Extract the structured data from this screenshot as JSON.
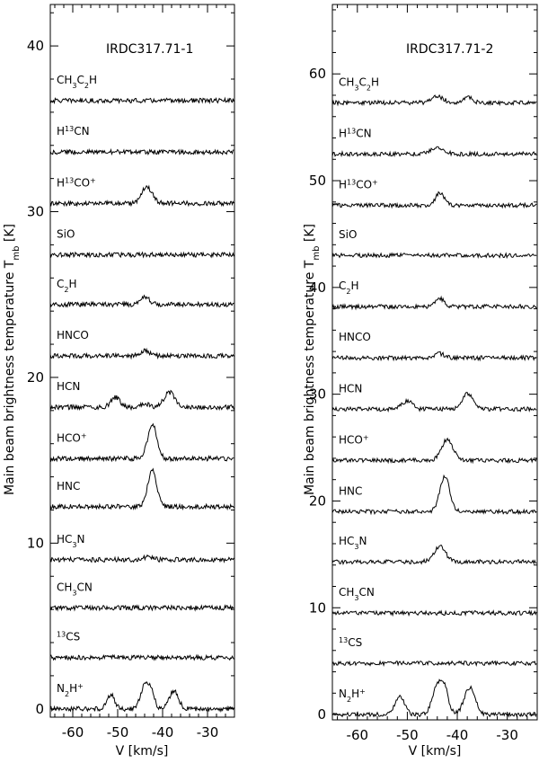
{
  "chart_data": [
    {
      "type": "line",
      "title": "IRDC317.71-1",
      "xlabel": "V [km/s]",
      "ylabel": "Main beam brightness temperature T_mb [K]",
      "xlim": [
        -65,
        -24
      ],
      "ylim": [
        -0.5,
        42.5
      ],
      "xticks": [
        -60,
        -50,
        -40,
        -30
      ],
      "yticks": [
        0,
        10,
        20,
        30,
        40
      ],
      "series": [
        {
          "name": "CH3C2H",
          "label": {
            "base": "CH",
            "parts": [
              {
                "t": "3",
                "s": "sub"
              },
              {
                "t": "C",
                "s": ""
              },
              {
                "t": "2",
                "s": "sub"
              },
              {
                "t": "H",
                "s": ""
              }
            ]
          },
          "offset": 36.7,
          "lines": []
        },
        {
          "name": "H13CN",
          "label": {
            "base": "H",
            "parts": [
              {
                "t": "13",
                "s": "sup"
              },
              {
                "t": "CN",
                "s": ""
              }
            ]
          },
          "offset": 33.6,
          "lines": []
        },
        {
          "name": "H13CO+",
          "label": {
            "base": "H",
            "parts": [
              {
                "t": "13",
                "s": "sup"
              },
              {
                "t": "CO",
                "s": ""
              },
              {
                "t": "+",
                "s": "sup"
              }
            ]
          },
          "offset": 30.5,
          "lines": [
            {
              "v": -43.5,
              "a": 1.0,
              "w": 1.2
            }
          ]
        },
        {
          "name": "SiO",
          "label": {
            "base": "SiO",
            "parts": []
          },
          "offset": 27.4,
          "lines": []
        },
        {
          "name": "C2H",
          "label": {
            "base": "C",
            "parts": [
              {
                "t": "2",
                "s": "sub"
              },
              {
                "t": "H",
                "s": ""
              }
            ]
          },
          "offset": 24.4,
          "lines": [
            {
              "v": -44.0,
              "a": 0.5,
              "w": 1.0
            }
          ]
        },
        {
          "name": "HNCO",
          "label": {
            "base": "HNCO",
            "parts": []
          },
          "offset": 21.3,
          "lines": [
            {
              "v": -44.0,
              "a": 0.3,
              "w": 1.0
            }
          ]
        },
        {
          "name": "HCN",
          "label": {
            "base": "HCN",
            "parts": []
          },
          "offset": 18.2,
          "lines": [
            {
              "v": -50.5,
              "a": 0.6,
              "w": 1.0
            },
            {
              "v": -38.5,
              "a": 0.9,
              "w": 1.2
            },
            {
              "v": -44.0,
              "a": 0.2,
              "w": 1.0
            }
          ]
        },
        {
          "name": "HCO+",
          "label": {
            "base": "HCO",
            "parts": [
              {
                "t": "+",
                "s": "sup"
              }
            ]
          },
          "offset": 15.1,
          "lines": [
            {
              "v": -42.3,
              "a": 2.1,
              "w": 1.0
            }
          ]
        },
        {
          "name": "HNC",
          "label": {
            "base": "HNC",
            "parts": []
          },
          "offset": 12.2,
          "lines": [
            {
              "v": -42.3,
              "a": 2.2,
              "w": 1.0
            }
          ]
        },
        {
          "name": "HC3N",
          "label": {
            "base": "HC",
            "parts": [
              {
                "t": "3",
                "s": "sub"
              },
              {
                "t": "N",
                "s": ""
              }
            ]
          },
          "offset": 9.0,
          "lines": [
            {
              "v": -43.0,
              "a": 0.2,
              "w": 1.0
            }
          ]
        },
        {
          "name": "CH3CN",
          "label": {
            "base": "CH",
            "parts": [
              {
                "t": "3",
                "s": "sub"
              },
              {
                "t": "CN",
                "s": ""
              }
            ]
          },
          "offset": 6.1,
          "lines": []
        },
        {
          "name": "13CS",
          "label": {
            "base": "",
            "parts": [
              {
                "t": "13",
                "s": "sup"
              },
              {
                "t": "CS",
                "s": ""
              }
            ]
          },
          "offset": 3.1,
          "lines": []
        },
        {
          "name": "N2H+",
          "label": {
            "base": "N",
            "parts": [
              {
                "t": "2",
                "s": "sub"
              },
              {
                "t": "H",
                "s": ""
              },
              {
                "t": "+",
                "s": "sup"
              }
            ]
          },
          "offset": 0.0,
          "lines": [
            {
              "v": -51.5,
              "a": 0.9,
              "w": 0.8
            },
            {
              "v": -44.0,
              "a": 1.4,
              "w": 0.9
            },
            {
              "v": -42.5,
              "a": 1.0,
              "w": 0.7
            },
            {
              "v": -37.5,
              "a": 1.1,
              "w": 1.0
            }
          ]
        }
      ]
    },
    {
      "type": "line",
      "title": "IRDC317.71-2",
      "xlabel": "V [km/s]",
      "ylabel": "Main beam brightness temperature T_mb [K]",
      "xlim": [
        -65,
        -24
      ],
      "ylim": [
        -0.5,
        66.5
      ],
      "xticks": [
        -60,
        -50,
        -40,
        -30
      ],
      "yticks": [
        0,
        10,
        20,
        30,
        40,
        50,
        60
      ],
      "series": [
        {
          "name": "CH3C2H",
          "label": {
            "base": "CH",
            "parts": [
              {
                "t": "3",
                "s": "sub"
              },
              {
                "t": "C",
                "s": ""
              },
              {
                "t": "2",
                "s": "sub"
              },
              {
                "t": "H",
                "s": ""
              }
            ]
          },
          "offset": 57.3,
          "lines": [
            {
              "v": -44.0,
              "a": 0.6,
              "w": 1.2
            },
            {
              "v": -38.0,
              "a": 0.5,
              "w": 1.0
            }
          ]
        },
        {
          "name": "H13CN",
          "label": {
            "base": "H",
            "parts": [
              {
                "t": "13",
                "s": "sup"
              },
              {
                "t": "CN",
                "s": ""
              }
            ]
          },
          "offset": 52.5,
          "lines": [
            {
              "v": -44.0,
              "a": 0.6,
              "w": 1.2
            }
          ]
        },
        {
          "name": "H13CO+",
          "label": {
            "base": "H",
            "parts": [
              {
                "t": "13",
                "s": "sup"
              },
              {
                "t": "CO",
                "s": ""
              },
              {
                "t": "+",
                "s": "sup"
              }
            ]
          },
          "offset": 47.7,
          "lines": [
            {
              "v": -43.5,
              "a": 1.1,
              "w": 0.9
            }
          ]
        },
        {
          "name": "SiO",
          "label": {
            "base": "SiO",
            "parts": []
          },
          "offset": 43.0,
          "lines": []
        },
        {
          "name": "C2H",
          "label": {
            "base": "C",
            "parts": [
              {
                "t": "2",
                "s": "sub"
              },
              {
                "t": "H",
                "s": ""
              }
            ]
          },
          "offset": 38.2,
          "lines": [
            {
              "v": -43.5,
              "a": 0.8,
              "w": 0.9
            }
          ]
        },
        {
          "name": "HNCO",
          "label": {
            "base": "HNCO",
            "parts": []
          },
          "offset": 33.4,
          "lines": [
            {
              "v": -43.5,
              "a": 0.4,
              "w": 1.0
            }
          ]
        },
        {
          "name": "HCN",
          "label": {
            "base": "HCN",
            "parts": []
          },
          "offset": 28.6,
          "lines": [
            {
              "v": -50.0,
              "a": 0.8,
              "w": 1.0
            },
            {
              "v": -38.0,
              "a": 1.5,
              "w": 1.0
            }
          ]
        },
        {
          "name": "HCO+",
          "label": {
            "base": "HCO",
            "parts": [
              {
                "t": "+",
                "s": "sup"
              }
            ]
          },
          "offset": 23.8,
          "lines": [
            {
              "v": -42.0,
              "a": 2.0,
              "w": 1.1
            }
          ]
        },
        {
          "name": "HNC",
          "label": {
            "base": "HNC",
            "parts": []
          },
          "offset": 19.0,
          "lines": [
            {
              "v": -42.5,
              "a": 3.3,
              "w": 1.0
            }
          ]
        },
        {
          "name": "HC3N",
          "label": {
            "base": "HC",
            "parts": [
              {
                "t": "3",
                "s": "sub"
              },
              {
                "t": "N",
                "s": ""
              }
            ]
          },
          "offset": 14.3,
          "lines": [
            {
              "v": -43.5,
              "a": 1.5,
              "w": 1.1
            }
          ]
        },
        {
          "name": "CH3CN",
          "label": {
            "base": "CH",
            "parts": [
              {
                "t": "3",
                "s": "sub"
              },
              {
                "t": "CN",
                "s": ""
              }
            ]
          },
          "offset": 9.5,
          "lines": []
        },
        {
          "name": "13CS",
          "label": {
            "base": "",
            "parts": [
              {
                "t": "13",
                "s": "sup"
              },
              {
                "t": "CS",
                "s": ""
              }
            ]
          },
          "offset": 4.8,
          "lines": []
        },
        {
          "name": "N2H+",
          "label": {
            "base": "N",
            "parts": [
              {
                "t": "2",
                "s": "sub"
              },
              {
                "t": "H",
                "s": ""
              },
              {
                "t": "+",
                "s": "sup"
              }
            ]
          },
          "offset": 0.0,
          "lines": [
            {
              "v": -51.5,
              "a": 1.8,
              "w": 0.9
            },
            {
              "v": -44.0,
              "a": 2.6,
              "w": 1.0
            },
            {
              "v": -42.5,
              "a": 2.0,
              "w": 0.8
            },
            {
              "v": -37.5,
              "a": 2.5,
              "w": 1.1
            }
          ]
        }
      ]
    }
  ]
}
